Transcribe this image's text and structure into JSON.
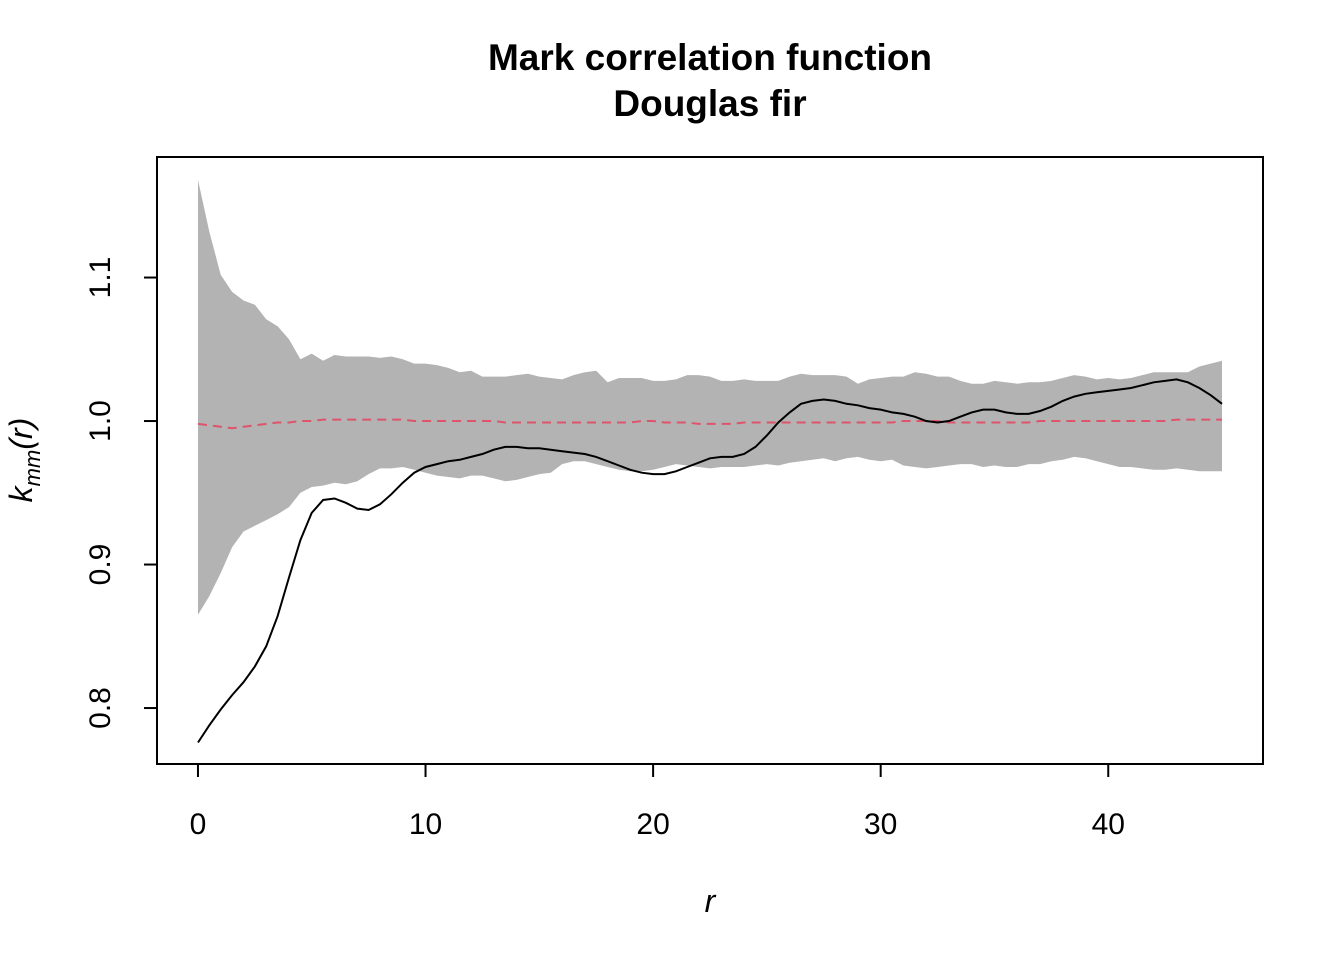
{
  "chart_data": {
    "type": "line",
    "title": "Mark correlation function",
    "subtitle": "Douglas fir",
    "xlabel": "r",
    "ylabel_main": "k",
    "ylabel_sub": "mm",
    "ylabel_arg": "(r)",
    "xlim": [
      -1.8,
      46.8
    ],
    "ylim": [
      0.761,
      1.184
    ],
    "xticks": [
      0,
      10,
      20,
      30,
      40
    ],
    "xtick_labels": [
      "0",
      "10",
      "20",
      "30",
      "40"
    ],
    "yticks": [
      0.8,
      0.9,
      1.0,
      1.1
    ],
    "ytick_labels": [
      "0.8",
      "0.9",
      "1.0",
      "1.1"
    ],
    "grid": false,
    "colors": {
      "envelope": "#b3b3b3",
      "observed": "#000000",
      "theoretical": "#df536b"
    },
    "x": [
      0,
      0.5,
      1,
      1.5,
      2,
      2.5,
      3,
      3.5,
      4,
      4.5,
      5,
      5.5,
      6,
      6.5,
      7,
      7.5,
      8,
      8.5,
      9,
      9.5,
      10,
      10.5,
      11,
      11.5,
      12,
      12.5,
      13,
      13.5,
      14,
      14.5,
      15,
      15.5,
      16,
      16.5,
      17,
      17.5,
      18,
      18.5,
      19,
      19.5,
      20,
      20.5,
      21,
      21.5,
      22,
      22.5,
      23,
      23.5,
      24,
      24.5,
      25,
      25.5,
      26,
      26.5,
      27,
      27.5,
      28,
      28.5,
      29,
      29.5,
      30,
      30.5,
      31,
      31.5,
      32,
      32.5,
      33,
      33.5,
      34,
      34.5,
      35,
      35.5,
      36,
      36.5,
      37,
      37.5,
      38,
      38.5,
      39,
      39.5,
      40,
      40.5,
      41,
      41.5,
      42,
      42.5,
      43,
      43.5,
      44,
      44.5,
      45
    ],
    "series": [
      {
        "role": "envelope-upper",
        "values": [
          1.168,
          1.132,
          1.102,
          1.09,
          1.084,
          1.081,
          1.071,
          1.066,
          1.057,
          1.043,
          1.047,
          1.042,
          1.046,
          1.045,
          1.045,
          1.045,
          1.044,
          1.045,
          1.043,
          1.04,
          1.04,
          1.039,
          1.037,
          1.034,
          1.035,
          1.031,
          1.031,
          1.031,
          1.032,
          1.033,
          1.031,
          1.03,
          1.029,
          1.032,
          1.034,
          1.035,
          1.027,
          1.03,
          1.03,
          1.03,
          1.028,
          1.028,
          1.029,
          1.032,
          1.032,
          1.031,
          1.028,
          1.028,
          1.029,
          1.028,
          1.028,
          1.028,
          1.031,
          1.033,
          1.032,
          1.032,
          1.032,
          1.031,
          1.026,
          1.029,
          1.03,
          1.031,
          1.031,
          1.034,
          1.033,
          1.031,
          1.031,
          1.028,
          1.026,
          1.026,
          1.028,
          1.027,
          1.026,
          1.027,
          1.027,
          1.028,
          1.03,
          1.032,
          1.031,
          1.029,
          1.03,
          1.029,
          1.03,
          1.032,
          1.034,
          1.034,
          1.034,
          1.034,
          1.038,
          1.04,
          1.042
        ]
      },
      {
        "role": "envelope-lower",
        "values": [
          0.865,
          0.878,
          0.894,
          0.912,
          0.923,
          0.927,
          0.931,
          0.935,
          0.94,
          0.95,
          0.954,
          0.955,
          0.957,
          0.956,
          0.958,
          0.963,
          0.967,
          0.967,
          0.968,
          0.966,
          0.964,
          0.962,
          0.961,
          0.96,
          0.962,
          0.962,
          0.96,
          0.958,
          0.959,
          0.961,
          0.963,
          0.964,
          0.97,
          0.972,
          0.972,
          0.97,
          0.968,
          0.966,
          0.965,
          0.965,
          0.966,
          0.968,
          0.97,
          0.969,
          0.968,
          0.967,
          0.968,
          0.968,
          0.968,
          0.969,
          0.97,
          0.969,
          0.971,
          0.972,
          0.973,
          0.974,
          0.972,
          0.974,
          0.975,
          0.973,
          0.972,
          0.973,
          0.969,
          0.968,
          0.967,
          0.968,
          0.969,
          0.97,
          0.97,
          0.968,
          0.969,
          0.968,
          0.968,
          0.97,
          0.97,
          0.972,
          0.973,
          0.975,
          0.974,
          0.972,
          0.97,
          0.968,
          0.968,
          0.967,
          0.966,
          0.966,
          0.967,
          0.966,
          0.965,
          0.965,
          0.965
        ]
      },
      {
        "role": "observed",
        "values": [
          0.776,
          0.788,
          0.799,
          0.809,
          0.818,
          0.829,
          0.843,
          0.864,
          0.891,
          0.917,
          0.936,
          0.945,
          0.946,
          0.943,
          0.939,
          0.938,
          0.942,
          0.949,
          0.957,
          0.964,
          0.968,
          0.97,
          0.972,
          0.973,
          0.975,
          0.977,
          0.98,
          0.982,
          0.982,
          0.981,
          0.981,
          0.98,
          0.979,
          0.978,
          0.977,
          0.975,
          0.972,
          0.969,
          0.966,
          0.964,
          0.963,
          0.963,
          0.965,
          0.968,
          0.971,
          0.974,
          0.975,
          0.975,
          0.977,
          0.982,
          0.99,
          0.999,
          1.006,
          1.012,
          1.014,
          1.015,
          1.014,
          1.012,
          1.011,
          1.009,
          1.008,
          1.006,
          1.005,
          1.003,
          1.0,
          0.999,
          1.0,
          1.003,
          1.006,
          1.008,
          1.008,
          1.006,
          1.005,
          1.005,
          1.007,
          1.01,
          1.014,
          1.017,
          1.019,
          1.02,
          1.021,
          1.022,
          1.023,
          1.025,
          1.027,
          1.028,
          1.029,
          1.027,
          1.023,
          1.018,
          1.012
        ]
      },
      {
        "role": "theoretical",
        "values": [
          0.998,
          0.997,
          0.996,
          0.995,
          0.996,
          0.997,
          0.998,
          0.999,
          0.999,
          1.0,
          1.0,
          1.001,
          1.001,
          1.001,
          1.001,
          1.001,
          1.001,
          1.001,
          1.001,
          1.0,
          1.0,
          1.0,
          1.0,
          1.0,
          1.0,
          1.0,
          1.0,
          0.999,
          0.999,
          0.999,
          0.999,
          0.999,
          0.999,
          0.999,
          0.999,
          0.999,
          0.999,
          0.999,
          0.999,
          1.0,
          1.0,
          0.999,
          0.999,
          0.999,
          0.998,
          0.998,
          0.998,
          0.998,
          0.999,
          0.999,
          0.999,
          0.999,
          0.999,
          0.999,
          0.999,
          0.999,
          0.999,
          0.999,
          0.999,
          0.999,
          0.999,
          0.999,
          1.0,
          1.0,
          1.0,
          1.0,
          0.999,
          0.999,
          0.999,
          0.999,
          0.999,
          0.999,
          0.999,
          0.999,
          1.0,
          1.0,
          1.0,
          1.0,
          1.0,
          1.0,
          1.0,
          1.0,
          1.0,
          1.0,
          1.0,
          1.0,
          1.001,
          1.001,
          1.001,
          1.001,
          1.001
        ]
      }
    ]
  }
}
